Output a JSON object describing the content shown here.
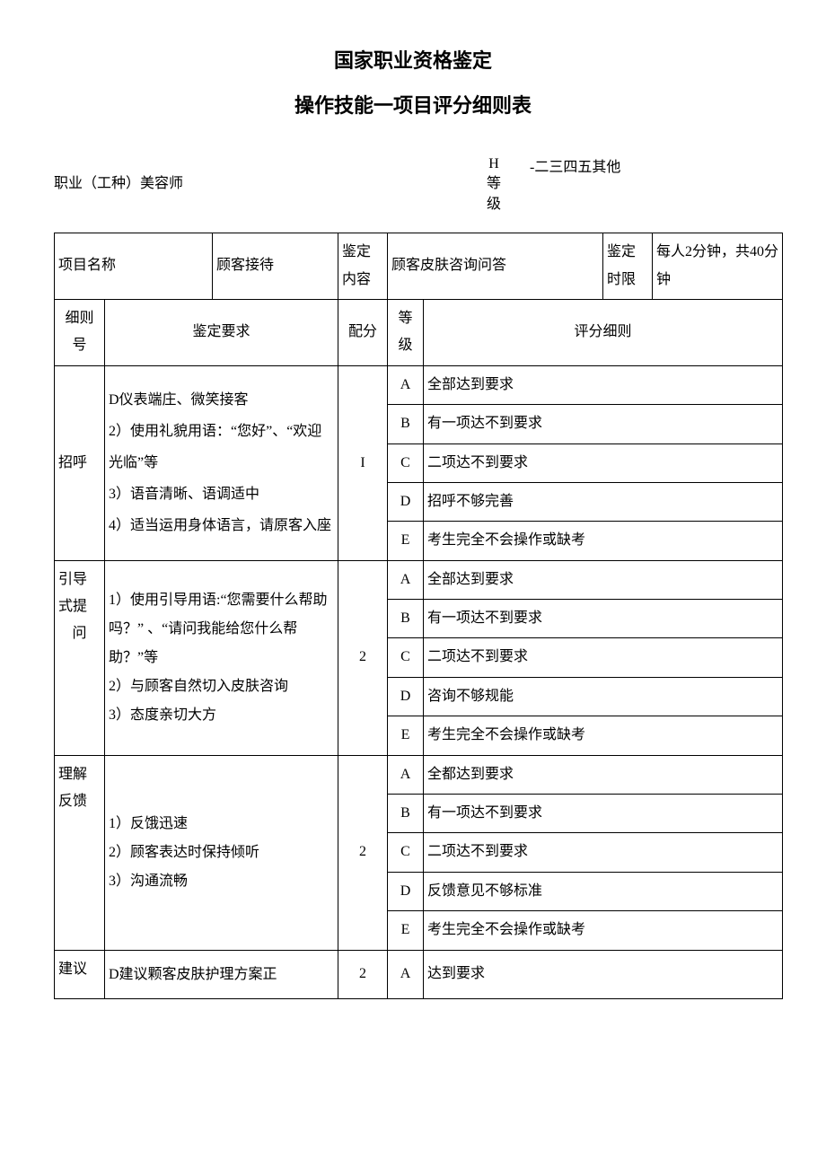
{
  "title1": "国家职业资格鉴定",
  "title2": "操作技能一项目评分细则表",
  "header": {
    "occupation_label": "职业（工种）美容师",
    "h": "H",
    "level_char1": "等",
    "level_char2": "级",
    "levels_text": "-二三四五其他"
  },
  "info_row": {
    "project_name_label": "项目名称",
    "project_name_value": "顾客接待",
    "assess_content_label_1": "鉴定",
    "assess_content_label_2": "内容",
    "assess_content_value": "顾客皮肤咨询问答",
    "time_limit_label_1": "鉴定",
    "time_limit_label_2": "时限",
    "time_limit_value": "每人2分钟，共40分钟"
  },
  "columns": {
    "rule_no_1": "细则",
    "rule_no_2": "号",
    "requirement": "鉴定要求",
    "score": "配分",
    "grade_1": "等",
    "grade_2": "级",
    "criteria": "评分细则"
  },
  "sections": [
    {
      "name": "招呼",
      "requirement": "D仪表端庄、微笑接客\n2）使用礼貌用语：“您好”、“欢迎光临”等\n3）语音清晰、语调适中\n4）适当运用身体语言，请原客入座",
      "score": "I",
      "rows": [
        {
          "g": "A",
          "t": "全部达到要求"
        },
        {
          "g": "B",
          "t": "有一项达不到要求"
        },
        {
          "g": "C",
          "t": "二项达不到要求"
        },
        {
          "g": "D",
          "t": "招呼不够完善"
        },
        {
          "g": "E",
          "t": "考生完全不会操作或缺考"
        }
      ]
    },
    {
      "name": "引导式提问",
      "name_l1": "引导",
      "name_l2": "式提",
      "name_l3": "问",
      "requirement": "1）使用引导用语:“您需要什么帮助吗？” 、“请问我能给您什么帮助？”等\n2）与顾客自然切入皮肤咨询\n3）态度亲切大方",
      "score": "2",
      "rows": [
        {
          "g": "A",
          "t": "全部达到要求"
        },
        {
          "g": "B",
          "t": "有一项达不到要求"
        },
        {
          "g": "C",
          "t": "二项达不到要求"
        },
        {
          "g": "D",
          "t": "咨询不够规能"
        },
        {
          "g": "E",
          "t": "考生完全不会操作或缺考"
        }
      ]
    },
    {
      "name": "理解反馈",
      "name_l1": "理解",
      "name_l2": "反馈",
      "requirement": "1）反饿迅速\n2）顾客表达时保持倾听\n3）沟通流畅",
      "score": "2",
      "rows": [
        {
          "g": "A",
          "t": "全都达到要求"
        },
        {
          "g": "B",
          "t": "有一项达不到要求"
        },
        {
          "g": "C",
          "t": "二项达不到要求"
        },
        {
          "g": "D",
          "t": "反馈意见不够标准"
        },
        {
          "g": "E",
          "t": "考生完全不会操作或缺考"
        }
      ]
    },
    {
      "name": "建议",
      "requirement": "D建议颗客皮肤护理方案正",
      "score": "2",
      "rows": [
        {
          "g": "A",
          "t": "达到要求"
        }
      ]
    }
  ]
}
